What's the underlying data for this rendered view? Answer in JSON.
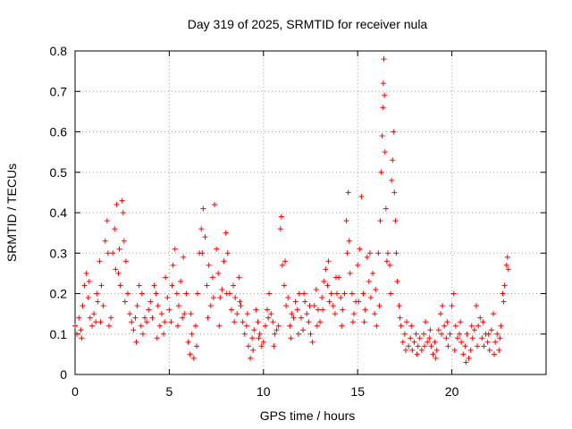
{
  "chart_data": {
    "type": "scatter",
    "title": "Day 319 of 2025, SRMTID for receiver nula",
    "xlabel": "GPS time / hours",
    "ylabel": "SRMTID / TECUs",
    "xlim": [
      0,
      25
    ],
    "ylim": [
      0,
      0.8
    ],
    "xticks": [
      0,
      5,
      10,
      15,
      20
    ],
    "xtick_labels": [
      "0",
      "5",
      "10",
      "15",
      "20"
    ],
    "yticks": [
      0,
      0.1,
      0.2,
      0.3,
      0.4,
      0.5,
      0.6,
      0.7,
      0.8
    ],
    "ytick_labels": [
      "0",
      "0.1",
      "0.2",
      "0.3",
      "0.4",
      "0.5",
      "0.6",
      "0.7",
      "0.8"
    ],
    "grid": true,
    "marker": "+",
    "marker_color": "#ff0000",
    "series": [
      {
        "name": "SRMTID",
        "points": [
          [
            0.0,
            0.12
          ],
          [
            0.1,
            0.1
          ],
          [
            0.2,
            0.14
          ],
          [
            0.3,
            0.11
          ],
          [
            0.4,
            0.17
          ],
          [
            0.5,
            0.22
          ],
          [
            0.6,
            0.25
          ],
          [
            0.7,
            0.19
          ],
          [
            0.8,
            0.14
          ],
          [
            0.9,
            0.12
          ],
          [
            1.0,
            0.15
          ],
          [
            1.1,
            0.13
          ],
          [
            1.2,
            0.18
          ],
          [
            1.3,
            0.28
          ],
          [
            1.4,
            0.22
          ],
          [
            1.5,
            0.17
          ],
          [
            1.6,
            0.33
          ],
          [
            1.7,
            0.38
          ],
          [
            1.75,
            0.3
          ],
          [
            1.8,
            0.12
          ],
          [
            1.9,
            0.14
          ],
          [
            2.0,
            0.3
          ],
          [
            2.1,
            0.36
          ],
          [
            2.2,
            0.42
          ],
          [
            2.3,
            0.25
          ],
          [
            2.4,
            0.22
          ],
          [
            2.5,
            0.43
          ],
          [
            2.55,
            0.4
          ],
          [
            2.6,
            0.33
          ],
          [
            2.7,
            0.28
          ],
          [
            2.8,
            0.2
          ],
          [
            2.9,
            0.15
          ],
          [
            3.0,
            0.13
          ],
          [
            3.1,
            0.11
          ],
          [
            3.2,
            0.14
          ],
          [
            3.3,
            0.17
          ],
          [
            3.4,
            0.22
          ],
          [
            3.5,
            0.12
          ],
          [
            3.6,
            0.1
          ],
          [
            3.7,
            0.14
          ],
          [
            3.8,
            0.13
          ],
          [
            3.9,
            0.16
          ],
          [
            4.0,
            0.18
          ],
          [
            4.1,
            0.14
          ],
          [
            4.2,
            0.22
          ],
          [
            4.3,
            0.2
          ],
          [
            4.4,
            0.17
          ],
          [
            4.5,
            0.12
          ],
          [
            4.6,
            0.15
          ],
          [
            4.7,
            0.1
          ],
          [
            4.8,
            0.24
          ],
          [
            4.9,
            0.19
          ],
          [
            5.0,
            0.16
          ],
          [
            5.1,
            0.13
          ],
          [
            5.2,
            0.27
          ],
          [
            5.3,
            0.31
          ],
          [
            5.4,
            0.2
          ],
          [
            5.5,
            0.17
          ],
          [
            5.6,
            0.23
          ],
          [
            5.7,
            0.14
          ],
          [
            5.8,
            0.15
          ],
          [
            5.9,
            0.2
          ],
          [
            6.0,
            0.08
          ],
          [
            6.1,
            0.05
          ],
          [
            6.2,
            0.1
          ],
          [
            6.3,
            0.04
          ],
          [
            6.4,
            0.12
          ],
          [
            6.5,
            0.2
          ],
          [
            6.6,
            0.3
          ],
          [
            6.7,
            0.36
          ],
          [
            6.8,
            0.41
          ],
          [
            6.9,
            0.34
          ],
          [
            7.0,
            0.22
          ],
          [
            7.1,
            0.27
          ],
          [
            7.2,
            0.17
          ],
          [
            7.3,
            0.24
          ],
          [
            7.4,
            0.42
          ],
          [
            7.5,
            0.31
          ],
          [
            7.6,
            0.25
          ],
          [
            7.7,
            0.19
          ],
          [
            7.8,
            0.21
          ],
          [
            7.9,
            0.28
          ],
          [
            8.0,
            0.35
          ],
          [
            8.1,
            0.3
          ],
          [
            8.2,
            0.2
          ],
          [
            8.3,
            0.16
          ],
          [
            8.4,
            0.22
          ],
          [
            8.5,
            0.19
          ],
          [
            8.6,
            0.15
          ],
          [
            8.7,
            0.24
          ],
          [
            8.8,
            0.17
          ],
          [
            8.9,
            0.13
          ],
          [
            9.0,
            0.1
          ],
          [
            9.1,
            0.12
          ],
          [
            9.2,
            0.07
          ],
          [
            9.3,
            0.04
          ],
          [
            9.4,
            0.09
          ],
          [
            9.5,
            0.11
          ],
          [
            9.6,
            0.16
          ],
          [
            9.7,
            0.13
          ],
          [
            9.8,
            0.1
          ],
          [
            9.9,
            0.07
          ],
          [
            10.0,
            0.08
          ],
          [
            10.1,
            0.12
          ],
          [
            10.2,
            0.16
          ],
          [
            10.3,
            0.2
          ],
          [
            10.4,
            0.15
          ],
          [
            10.5,
            0.13
          ],
          [
            10.6,
            0.1
          ],
          [
            10.7,
            0.11
          ],
          [
            10.8,
            0.12
          ],
          [
            10.9,
            0.36
          ],
          [
            10.95,
            0.39
          ],
          [
            11.0,
            0.27
          ],
          [
            11.1,
            0.22
          ],
          [
            11.2,
            0.17
          ],
          [
            11.3,
            0.19
          ],
          [
            11.4,
            0.12
          ],
          [
            11.5,
            0.15
          ],
          [
            11.6,
            0.14
          ],
          [
            11.7,
            0.18
          ],
          [
            11.8,
            0.16
          ],
          [
            11.9,
            0.2
          ],
          [
            12.0,
            0.14
          ],
          [
            12.1,
            0.11
          ],
          [
            12.2,
            0.18
          ],
          [
            12.3,
            0.15
          ],
          [
            12.4,
            0.13
          ],
          [
            12.5,
            0.1
          ],
          [
            12.6,
            0.08
          ],
          [
            12.7,
            0.17
          ],
          [
            12.8,
            0.21
          ],
          [
            12.9,
            0.16
          ],
          [
            13.0,
            0.13
          ],
          [
            13.1,
            0.19
          ],
          [
            13.2,
            0.23
          ],
          [
            13.3,
            0.26
          ],
          [
            13.4,
            0.22
          ],
          [
            13.5,
            0.18
          ],
          [
            13.6,
            0.2
          ],
          [
            13.7,
            0.17
          ],
          [
            13.8,
            0.15
          ],
          [
            13.9,
            0.2
          ],
          [
            14.0,
            0.24
          ],
          [
            14.1,
            0.19
          ],
          [
            14.2,
            0.16
          ],
          [
            14.3,
            0.2
          ],
          [
            14.4,
            0.38
          ],
          [
            14.5,
            0.45
          ],
          [
            14.55,
            0.33
          ],
          [
            14.6,
            0.25
          ],
          [
            14.7,
            0.2
          ],
          [
            14.8,
            0.15
          ],
          [
            14.9,
            0.18
          ],
          [
            15.0,
            0.27
          ],
          [
            15.1,
            0.31
          ],
          [
            15.2,
            0.44
          ],
          [
            15.3,
            0.2
          ],
          [
            15.4,
            0.16
          ],
          [
            15.5,
            0.29
          ],
          [
            15.6,
            0.23
          ],
          [
            15.7,
            0.19
          ],
          [
            15.8,
            0.25
          ],
          [
            15.9,
            0.15
          ],
          [
            16.0,
            0.12
          ],
          [
            16.1,
            0.3
          ],
          [
            16.2,
            0.38
          ],
          [
            16.25,
            0.5
          ],
          [
            16.3,
            0.59
          ],
          [
            16.33,
            0.66
          ],
          [
            16.36,
            0.72
          ],
          [
            16.39,
            0.78
          ],
          [
            16.42,
            0.69
          ],
          [
            16.45,
            0.55
          ],
          [
            16.5,
            0.41
          ],
          [
            16.6,
            0.3
          ],
          [
            16.7,
            0.27
          ],
          [
            16.8,
            0.48
          ],
          [
            16.85,
            0.53
          ],
          [
            16.9,
            0.6
          ],
          [
            16.95,
            0.45
          ],
          [
            17.0,
            0.38
          ],
          [
            17.1,
            0.23
          ],
          [
            17.2,
            0.17
          ],
          [
            17.3,
            0.12
          ],
          [
            17.4,
            0.08
          ],
          [
            17.5,
            0.1
          ],
          [
            17.6,
            0.13
          ],
          [
            17.7,
            0.07
          ],
          [
            17.8,
            0.09
          ],
          [
            17.9,
            0.06
          ],
          [
            18.0,
            0.08
          ],
          [
            18.1,
            0.1
          ],
          [
            18.2,
            0.07
          ],
          [
            18.3,
            0.09
          ],
          [
            18.4,
            0.06
          ],
          [
            18.5,
            0.1
          ],
          [
            18.6,
            0.13
          ],
          [
            18.7,
            0.08
          ],
          [
            18.8,
            0.09
          ],
          [
            18.9,
            0.07
          ],
          [
            19.0,
            0.05
          ],
          [
            19.1,
            0.08
          ],
          [
            19.2,
            0.06
          ],
          [
            19.3,
            0.11
          ],
          [
            19.4,
            0.15
          ],
          [
            19.5,
            0.17
          ],
          [
            19.6,
            0.12
          ],
          [
            19.7,
            0.09
          ],
          [
            19.8,
            0.07
          ],
          [
            19.9,
            0.1
          ],
          [
            20.0,
            0.17
          ],
          [
            20.1,
            0.2
          ],
          [
            20.2,
            0.12
          ],
          [
            20.3,
            0.09
          ],
          [
            20.4,
            0.1
          ],
          [
            20.5,
            0.08
          ],
          [
            20.6,
            0.05
          ],
          [
            20.7,
            0.07
          ],
          [
            20.8,
            0.1
          ],
          [
            20.9,
            0.04
          ],
          [
            21.0,
            0.06
          ],
          [
            21.1,
            0.09
          ],
          [
            21.2,
            0.11
          ],
          [
            21.3,
            0.17
          ],
          [
            21.4,
            0.12
          ],
          [
            21.5,
            0.14
          ],
          [
            21.6,
            0.09
          ],
          [
            21.7,
            0.07
          ],
          [
            21.8,
            0.1
          ],
          [
            21.9,
            0.08
          ],
          [
            22.0,
            0.06
          ],
          [
            22.1,
            0.11
          ],
          [
            22.2,
            0.15
          ],
          [
            22.3,
            0.08
          ],
          [
            22.4,
            0.1
          ],
          [
            22.5,
            0.06
          ],
          [
            22.6,
            0.12
          ],
          [
            22.7,
            0.2
          ],
          [
            22.8,
            0.22
          ],
          [
            22.9,
            0.27
          ],
          [
            23.0,
            0.26
          ],
          [
            0.35,
            0.09
          ],
          [
            0.75,
            0.23
          ],
          [
            1.15,
            0.2
          ],
          [
            1.35,
            0.13
          ],
          [
            2.15,
            0.26
          ],
          [
            2.35,
            0.31
          ],
          [
            2.65,
            0.18
          ],
          [
            3.25,
            0.08
          ],
          [
            3.55,
            0.2
          ],
          [
            4.35,
            0.09
          ],
          [
            4.75,
            0.13
          ],
          [
            5.15,
            0.22
          ],
          [
            5.45,
            0.12
          ],
          [
            5.75,
            0.29
          ],
          [
            6.15,
            0.15
          ],
          [
            6.45,
            0.07
          ],
          [
            6.75,
            0.3
          ],
          [
            7.05,
            0.14
          ],
          [
            7.35,
            0.19
          ],
          [
            7.65,
            0.12
          ],
          [
            8.05,
            0.2
          ],
          [
            8.45,
            0.13
          ],
          [
            8.75,
            0.18
          ],
          [
            9.15,
            0.15
          ],
          [
            9.45,
            0.06
          ],
          [
            9.75,
            0.09
          ],
          [
            10.25,
            0.14
          ],
          [
            10.55,
            0.07
          ],
          [
            11.15,
            0.28
          ],
          [
            11.45,
            0.09
          ],
          [
            11.85,
            0.1
          ],
          [
            12.15,
            0.2
          ],
          [
            12.45,
            0.17
          ],
          [
            12.85,
            0.12
          ],
          [
            13.15,
            0.16
          ],
          [
            13.45,
            0.28
          ],
          [
            13.85,
            0.24
          ],
          [
            14.15,
            0.12
          ],
          [
            14.45,
            0.3
          ],
          [
            14.75,
            0.13
          ],
          [
            15.05,
            0.18
          ],
          [
            15.35,
            0.13
          ],
          [
            15.65,
            0.3
          ],
          [
            15.95,
            0.21
          ],
          [
            16.15,
            0.17
          ],
          [
            16.55,
            0.28
          ],
          [
            16.75,
            0.2
          ],
          [
            17.05,
            0.3
          ],
          [
            17.25,
            0.14
          ],
          [
            17.55,
            0.06
          ],
          [
            17.85,
            0.12
          ],
          [
            18.15,
            0.05
          ],
          [
            18.55,
            0.07
          ],
          [
            18.85,
            0.11
          ],
          [
            19.15,
            0.04
          ],
          [
            19.45,
            0.1
          ],
          [
            19.75,
            0.13
          ],
          [
            20.15,
            0.06
          ],
          [
            20.45,
            0.13
          ],
          [
            20.75,
            0.03
          ],
          [
            21.05,
            0.12
          ],
          [
            21.35,
            0.07
          ],
          [
            21.65,
            0.13
          ],
          [
            21.95,
            0.1
          ],
          [
            22.25,
            0.05
          ],
          [
            22.55,
            0.09
          ],
          [
            22.75,
            0.18
          ],
          [
            22.95,
            0.29
          ]
        ]
      }
    ]
  }
}
